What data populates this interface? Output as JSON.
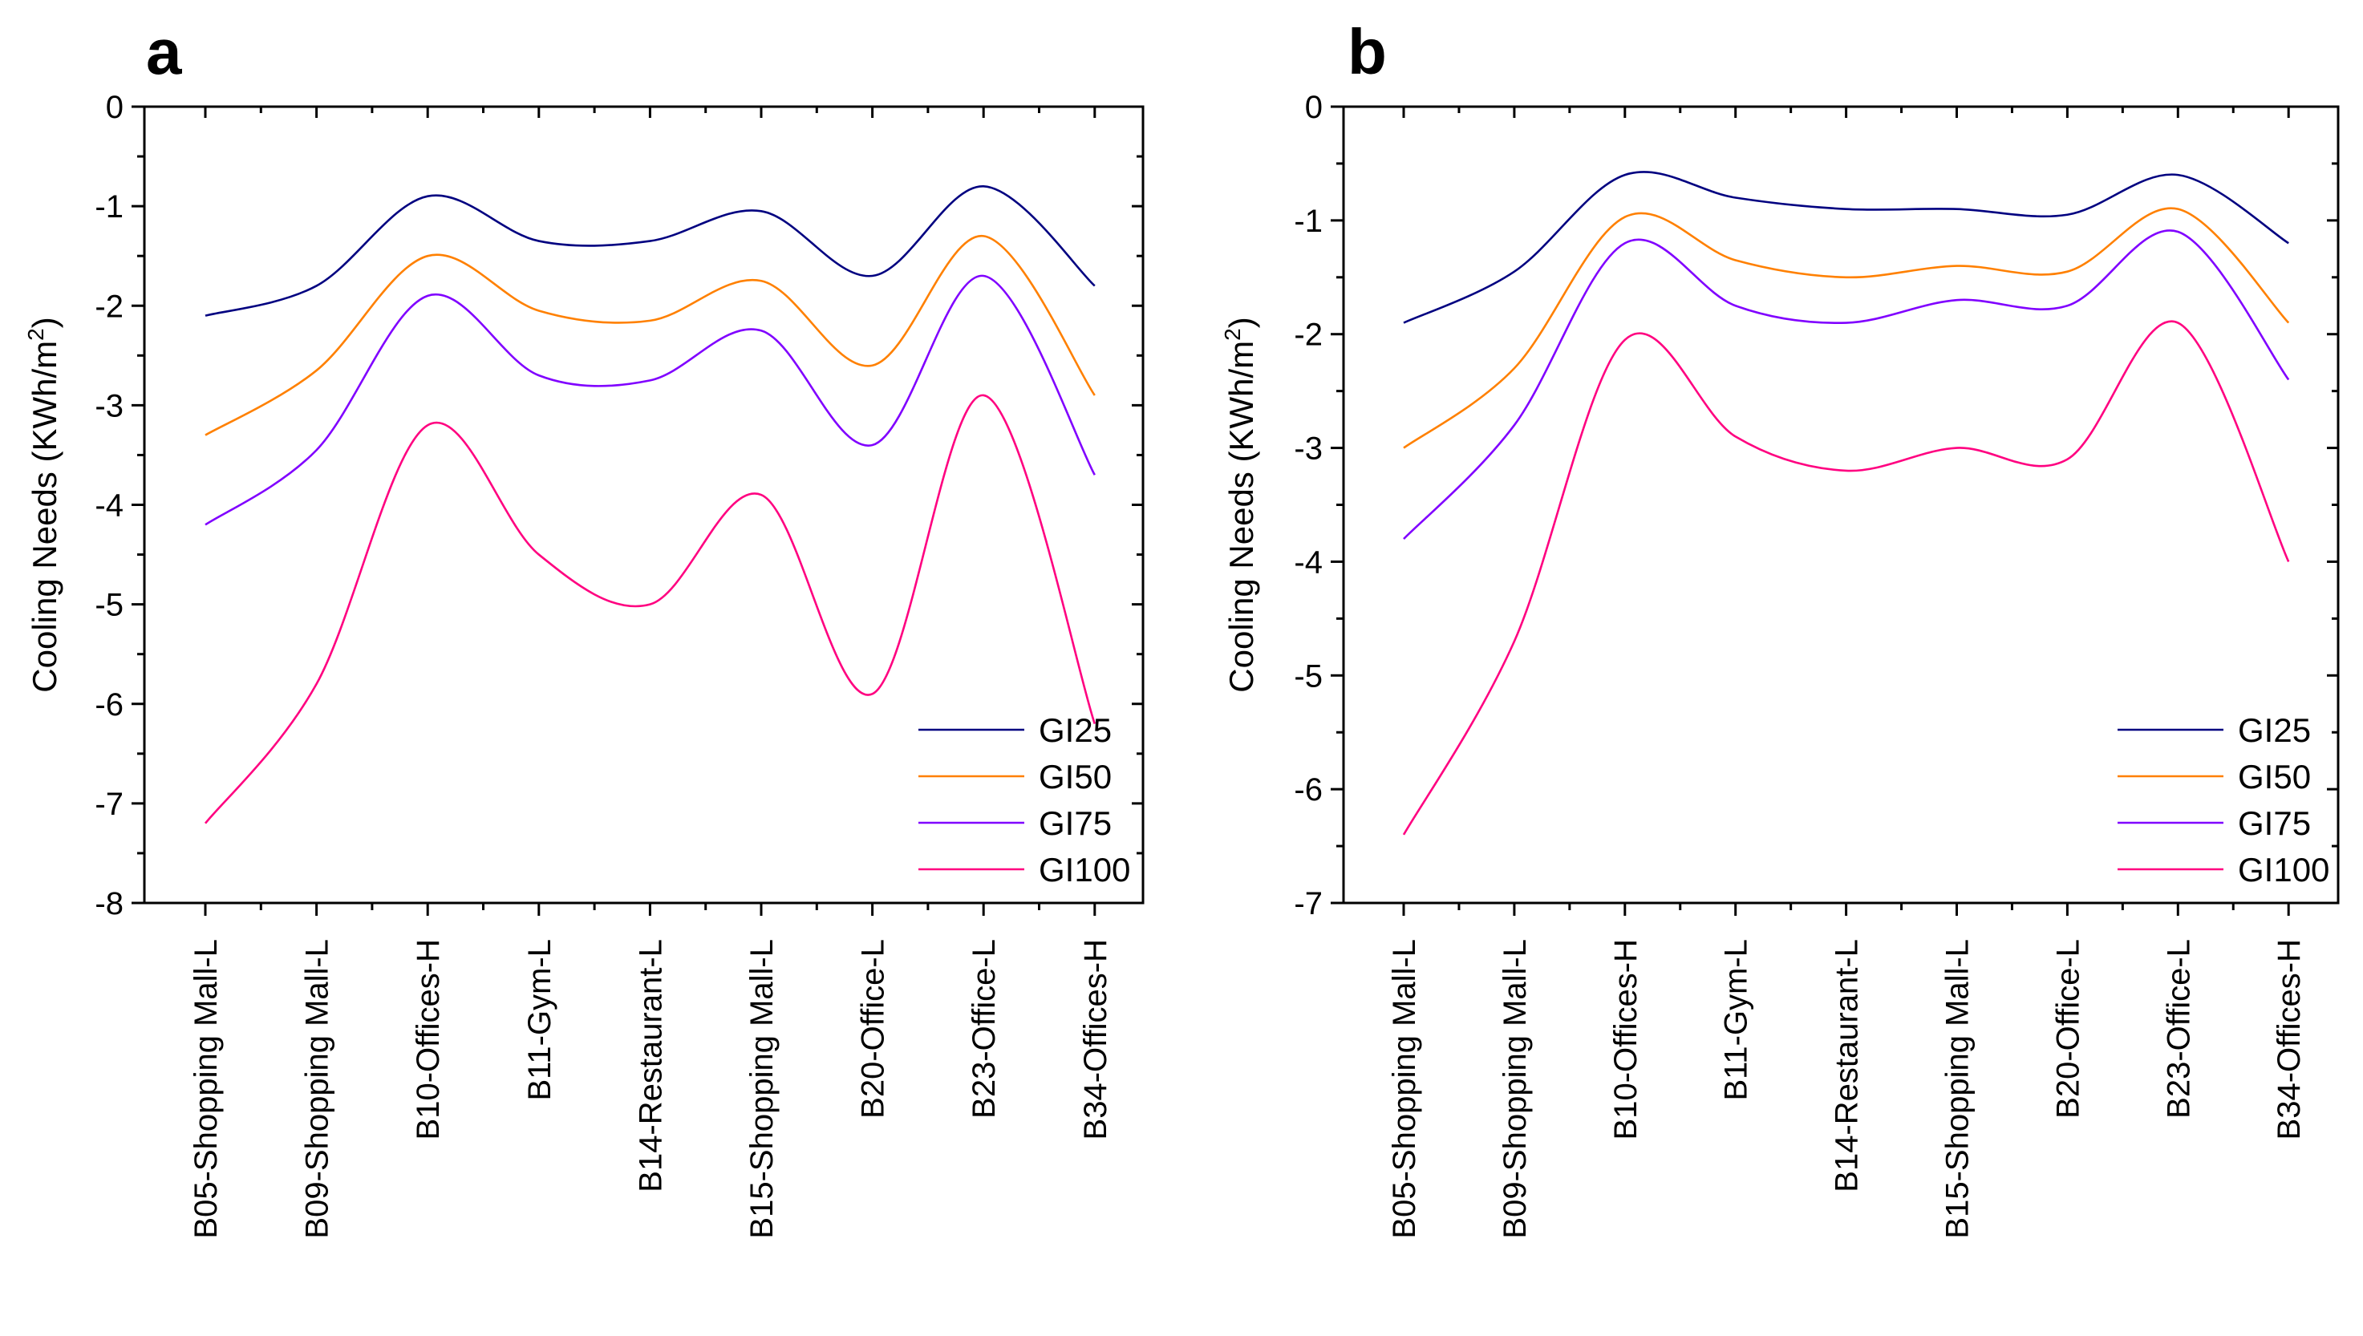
{
  "chart_data": [
    {
      "type": "line",
      "panel_label": "a",
      "ylabel": "Cooling Needs (KWh/m",
      "ylabel_sup": "2",
      "ylabel_close": ")",
      "ylim": [
        -8,
        0
      ],
      "yticks": [
        0,
        -1,
        -2,
        -3,
        -4,
        -5,
        -6,
        -7,
        -8
      ],
      "ytick_labels": [
        "0",
        "-1",
        "-2",
        "-3",
        "-4",
        "-5",
        "-6",
        "-7",
        "-8"
      ],
      "categories": [
        "B05-Shopping Mall-L",
        "B09-Shopping Mall-L",
        "B10-Offices-H",
        "B11-Gym-L",
        "B14-Restaurant-L",
        "B15-Shopping Mall-L",
        "B20-Office-L",
        "B23-Office-L",
        "B34-Offices-H"
      ],
      "legend_position": "bottom-right",
      "series": [
        {
          "name": "GI25",
          "color": "#000080",
          "values": [
            -2.1,
            -1.8,
            -0.9,
            -1.35,
            -1.35,
            -1.05,
            -1.7,
            -0.8,
            -1.8
          ]
        },
        {
          "name": "GI50",
          "color": "#ff8000",
          "values": [
            -3.3,
            -2.65,
            -1.5,
            -2.05,
            -2.15,
            -1.75,
            -2.6,
            -1.3,
            -2.9
          ]
        },
        {
          "name": "GI75",
          "color": "#8000ff",
          "values": [
            -4.2,
            -3.45,
            -1.9,
            -2.7,
            -2.75,
            -2.25,
            -3.4,
            -1.7,
            -3.7
          ]
        },
        {
          "name": "GI100",
          "color": "#ff0080",
          "values": [
            -7.2,
            -5.8,
            -3.2,
            -4.5,
            -5.0,
            -3.9,
            -5.9,
            -2.9,
            -6.2
          ]
        }
      ]
    },
    {
      "type": "line",
      "panel_label": "b",
      "ylabel": "Cooling Needs (KWh/m",
      "ylabel_sup": "2",
      "ylabel_close": ")",
      "ylim": [
        -7,
        0
      ],
      "yticks": [
        0,
        -1,
        -2,
        -3,
        -4,
        -5,
        -6,
        -7
      ],
      "ytick_labels": [
        "0",
        "-1",
        "-2",
        "-3",
        "-4",
        "-5",
        "-6",
        "-7"
      ],
      "categories": [
        "B05-Shopping Mall-L",
        "B09-Shopping Mall-L",
        "B10-Offices-H",
        "B11-Gym-L",
        "B14-Restaurant-L",
        "B15-Shopping Mall-L",
        "B20-Office-L",
        "B23-Office-L",
        "B34-Offices-H"
      ],
      "legend_position": "middle-right",
      "series": [
        {
          "name": "GI25",
          "color": "#000080",
          "values": [
            -1.9,
            -1.45,
            -0.6,
            -0.8,
            -0.9,
            -0.9,
            -0.95,
            -0.6,
            -1.2
          ]
        },
        {
          "name": "GI50",
          "color": "#ff8000",
          "values": [
            -3.0,
            -2.3,
            -0.97,
            -1.35,
            -1.5,
            -1.4,
            -1.45,
            -0.9,
            -1.9
          ]
        },
        {
          "name": "GI75",
          "color": "#8000ff",
          "values": [
            -3.8,
            -2.8,
            -1.2,
            -1.75,
            -1.9,
            -1.7,
            -1.75,
            -1.1,
            -2.4
          ]
        },
        {
          "name": "GI100",
          "color": "#ff0080",
          "values": [
            -6.4,
            -4.7,
            -2.05,
            -2.9,
            -3.2,
            -3.0,
            -3.1,
            -1.9,
            -4.0
          ]
        }
      ]
    }
  ]
}
